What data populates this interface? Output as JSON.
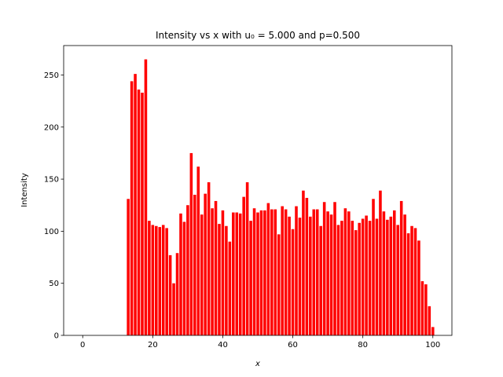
{
  "chart_data": {
    "type": "bar",
    "title": "Intensity vs x with u₀ = 5.000 and p=0.500",
    "xlabel": "x",
    "ylabel": "Intensity",
    "color": "#ff0000",
    "x": [
      0,
      1,
      2,
      3,
      4,
      5,
      6,
      7,
      8,
      9,
      10,
      11,
      12,
      13,
      14,
      15,
      16,
      17,
      18,
      19,
      20,
      21,
      22,
      23,
      24,
      25,
      26,
      27,
      28,
      29,
      30,
      31,
      32,
      33,
      34,
      35,
      36,
      37,
      38,
      39,
      40,
      41,
      42,
      43,
      44,
      45,
      46,
      47,
      48,
      49,
      50,
      51,
      52,
      53,
      54,
      55,
      56,
      57,
      58,
      59,
      60,
      61,
      62,
      63,
      64,
      65,
      66,
      67,
      68,
      69,
      70,
      71,
      72,
      73,
      74,
      75,
      76,
      77,
      78,
      79,
      80,
      81,
      82,
      83,
      84,
      85,
      86,
      87,
      88,
      89,
      90,
      91,
      92,
      93,
      94,
      95,
      96,
      97,
      98,
      99,
      100
    ],
    "values": [
      0,
      0,
      0,
      0,
      0,
      0,
      0,
      0,
      0,
      0,
      0,
      0,
      0,
      131,
      244,
      251,
      236,
      233,
      265,
      110,
      106,
      105,
      104,
      106,
      103,
      77,
      50,
      79,
      117,
      109,
      125,
      175,
      135,
      162,
      116,
      136,
      147,
      122,
      129,
      107,
      120,
      105,
      90,
      118,
      118,
      117,
      133,
      147,
      110,
      122,
      118,
      120,
      120,
      127,
      121,
      121,
      97,
      124,
      121,
      114,
      102,
      124,
      113,
      139,
      132,
      114,
      121,
      121,
      105,
      128,
      119,
      116,
      128,
      106,
      110,
      122,
      119,
      110,
      101,
      108,
      112,
      115,
      110,
      131,
      112,
      139,
      119,
      111,
      114,
      120,
      106,
      129,
      116,
      98,
      105,
      103,
      91,
      52,
      49,
      28,
      8
    ],
    "xlim": [
      -5.44,
      105.44
    ],
    "ylim": [
      0,
      278.25
    ],
    "xticks": [
      0,
      20,
      40,
      60,
      80,
      100
    ],
    "yticks": [
      0,
      50,
      100,
      150,
      200,
      250
    ]
  }
}
